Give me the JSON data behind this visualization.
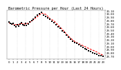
{
  "title": "Barometric Pressure per Hour (Last 24 Hours)",
  "bg_color": "#ffffff",
  "plot_bg_color": "#ffffff",
  "grid_color": "#999999",
  "line_color": "#ff0000",
  "dot_color": "#000000",
  "hours": [
    0,
    1,
    2,
    3,
    4,
    5,
    6,
    7,
    8,
    9,
    10,
    11,
    12,
    13,
    14,
    15,
    16,
    17,
    18,
    19,
    20,
    21,
    22,
    23
  ],
  "pressure": [
    29.72,
    29.68,
    29.65,
    29.7,
    29.68,
    29.72,
    29.82,
    29.92,
    30.02,
    29.98,
    29.85,
    29.78,
    29.65,
    29.52,
    29.38,
    29.25,
    29.15,
    29.08,
    29.02,
    28.96,
    28.9,
    28.85,
    28.78,
    28.72
  ],
  "scatter_x": [
    0.0,
    0.3,
    0.7,
    1.0,
    1.3,
    1.7,
    2.0,
    2.3,
    2.7,
    3.0,
    3.3,
    3.7,
    4.0,
    4.3,
    4.7,
    5.0,
    5.5,
    6.0,
    6.5,
    7.0,
    7.5,
    8.0,
    8.5,
    9.0,
    9.5,
    10.0,
    10.5,
    11.0,
    11.5,
    12.0,
    12.5,
    13.0,
    13.5,
    14.0,
    14.5,
    15.0,
    15.5,
    16.0,
    16.5,
    17.0,
    17.5,
    18.0,
    18.5,
    19.0,
    19.5,
    20.0,
    20.5,
    21.0,
    21.5,
    22.0,
    22.5,
    23.0
  ],
  "scatter_y": [
    29.74,
    29.7,
    29.68,
    29.7,
    29.65,
    29.6,
    29.67,
    29.62,
    29.68,
    29.72,
    29.66,
    29.63,
    29.7,
    29.65,
    29.69,
    29.74,
    29.78,
    29.84,
    29.9,
    29.95,
    30.0,
    30.05,
    29.96,
    29.92,
    29.88,
    29.82,
    29.76,
    29.72,
    29.66,
    29.6,
    29.55,
    29.48,
    29.42,
    29.35,
    29.28,
    29.22,
    29.16,
    29.12,
    29.08,
    29.04,
    29.0,
    28.96,
    28.92,
    28.9,
    28.86,
    28.84,
    28.8,
    28.78,
    28.75,
    28.72,
    28.7,
    28.68
  ],
  "ylim": [
    28.6,
    30.1
  ],
  "ytick_values": [
    28.7,
    28.8,
    28.9,
    29.0,
    29.1,
    29.2,
    29.3,
    29.4,
    29.5,
    29.6,
    29.7,
    29.8,
    29.9,
    30.0,
    30.1
  ],
  "xtick_values": [
    0,
    1,
    2,
    3,
    4,
    5,
    6,
    7,
    8,
    9,
    10,
    11,
    12,
    13,
    14,
    15,
    16,
    17,
    18,
    19,
    20,
    21,
    22,
    23
  ],
  "xtick_labels": [
    "0",
    "1",
    "2",
    "3",
    "4",
    "5",
    "6",
    "7",
    "8",
    "9",
    "10",
    "11",
    "12",
    "13",
    "14",
    "15",
    "16",
    "17",
    "18",
    "19",
    "20",
    "21",
    "22",
    "23"
  ],
  "title_fontsize": 3.8,
  "tick_fontsize": 2.8,
  "line_width": 0.8,
  "marker_size": 1.2,
  "vgrid_x": [
    2,
    4,
    6,
    8,
    10,
    12,
    14,
    16,
    18,
    20,
    22
  ]
}
